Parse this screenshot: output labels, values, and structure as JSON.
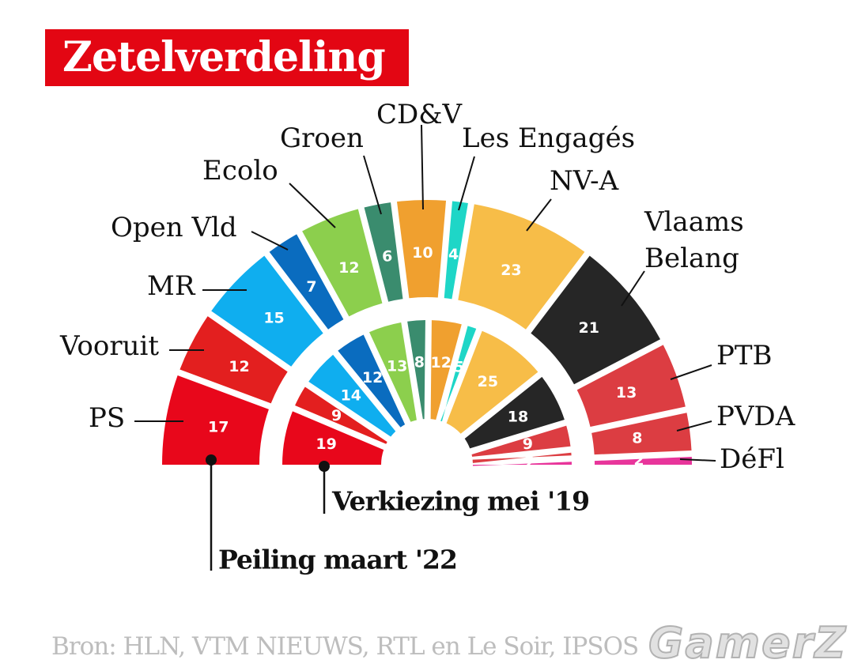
{
  "title": "Zetelverdeling",
  "source": "Bron: HLN, VTM NIEUWS, RTL en Le Soir, IPSOS",
  "watermark": "GamerZ",
  "chart_data": {
    "type": "parliament-semicircle",
    "rings": [
      {
        "name": "Peiling maart '22",
        "values": [
          {
            "party": "PS",
            "seats": 17,
            "color": "#e8071b"
          },
          {
            "party": "Vooruit",
            "seats": 12,
            "color": "#e31f1f"
          },
          {
            "party": "MR",
            "seats": 15,
            "color": "#0faeef"
          },
          {
            "party": "Open Vld",
            "seats": 7,
            "color": "#0a6cbf"
          },
          {
            "party": "Ecolo",
            "seats": 12,
            "color": "#8ccf4d"
          },
          {
            "party": "Groen",
            "seats": 6,
            "color": "#3a8c6e"
          },
          {
            "party": "CD&V",
            "seats": 10,
            "color": "#f0a02f"
          },
          {
            "party": "Les Engagés",
            "seats": 4,
            "color": "#1ed6c7"
          },
          {
            "party": "NV-A",
            "seats": 23,
            "color": "#f7bd48"
          },
          {
            "party": "Vlaams Belang",
            "seats": 21,
            "color": "#262626"
          },
          {
            "party": "PTB",
            "seats": 13,
            "color": "#dc3d42"
          },
          {
            "party": "PVDA",
            "seats": 8,
            "color": "#dc3d42"
          },
          {
            "party": "DéFI",
            "seats": 2,
            "color": "#e8359b"
          }
        ]
      },
      {
        "name": "Verkiezing mei '19",
        "values": [
          {
            "party": "PS",
            "seats": 19,
            "color": "#e8071b"
          },
          {
            "party": "Vooruit",
            "seats": 9,
            "color": "#e31f1f"
          },
          {
            "party": "MR",
            "seats": 14,
            "color": "#0faeef"
          },
          {
            "party": "Open Vld",
            "seats": 12,
            "color": "#0a6cbf"
          },
          {
            "party": "Ecolo",
            "seats": 13,
            "color": "#8ccf4d"
          },
          {
            "party": "Groen",
            "seats": 8,
            "color": "#3a8c6e"
          },
          {
            "party": "CD&V",
            "seats": 12,
            "color": "#f0a02f"
          },
          {
            "party": "Les Engagés",
            "seats": 5,
            "color": "#1ed6c7"
          },
          {
            "party": "NV-A",
            "seats": 25,
            "color": "#f7bd48"
          },
          {
            "party": "Vlaams Belang",
            "seats": 18,
            "color": "#262626"
          },
          {
            "party": "PTB",
            "seats": 9,
            "color": "#dc3d42"
          },
          {
            "party": "PVDA",
            "seats": 3,
            "color": "#dc3d42"
          },
          {
            "party": "DéFI",
            "seats": 2,
            "color": "#e8359b"
          }
        ]
      }
    ],
    "party_labels": [
      "PS",
      "Vooruit",
      "MR",
      "Open Vld",
      "Ecolo",
      "Groen",
      "CD&V",
      "Les Engagés",
      "NV-A",
      "Vlaams\nBelang",
      "PTB",
      "PVDA",
      "DéFl"
    ]
  }
}
